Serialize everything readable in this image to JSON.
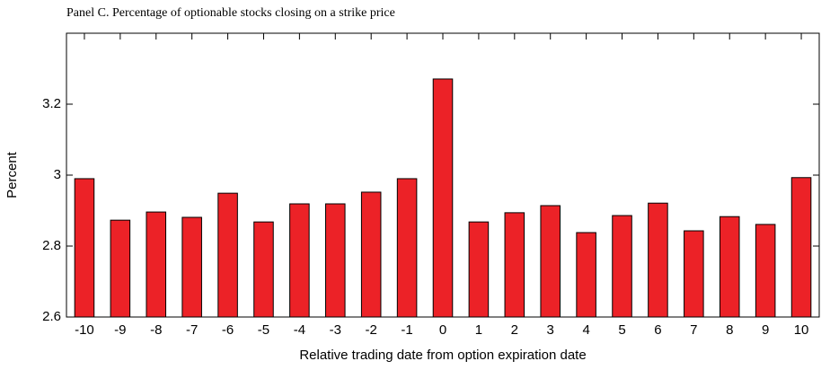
{
  "chart_data": {
    "type": "bar",
    "title": "Panel C.  Percentage of optionable stocks closing on a strike price",
    "x_label": "Relative trading date from option expiration date",
    "y_label": "Percent",
    "categories": [
      "-10",
      "-9",
      "-8",
      "-7",
      "-6",
      "-5",
      "-4",
      "-3",
      "-2",
      "-1",
      "0",
      "1",
      "2",
      "3",
      "4",
      "5",
      "6",
      "7",
      "8",
      "9",
      "10"
    ],
    "values": [
      2.99,
      2.873,
      2.896,
      2.881,
      2.949,
      2.868,
      2.919,
      2.919,
      2.952,
      2.99,
      3.271,
      2.868,
      2.894,
      2.914,
      2.838,
      2.886,
      2.921,
      2.843,
      2.883,
      2.861,
      2.993
    ],
    "color": "#ec2227",
    "ylim": [
      2.6,
      3.4
    ],
    "yticks": [
      2.6,
      2.8,
      3,
      3.2
    ]
  }
}
